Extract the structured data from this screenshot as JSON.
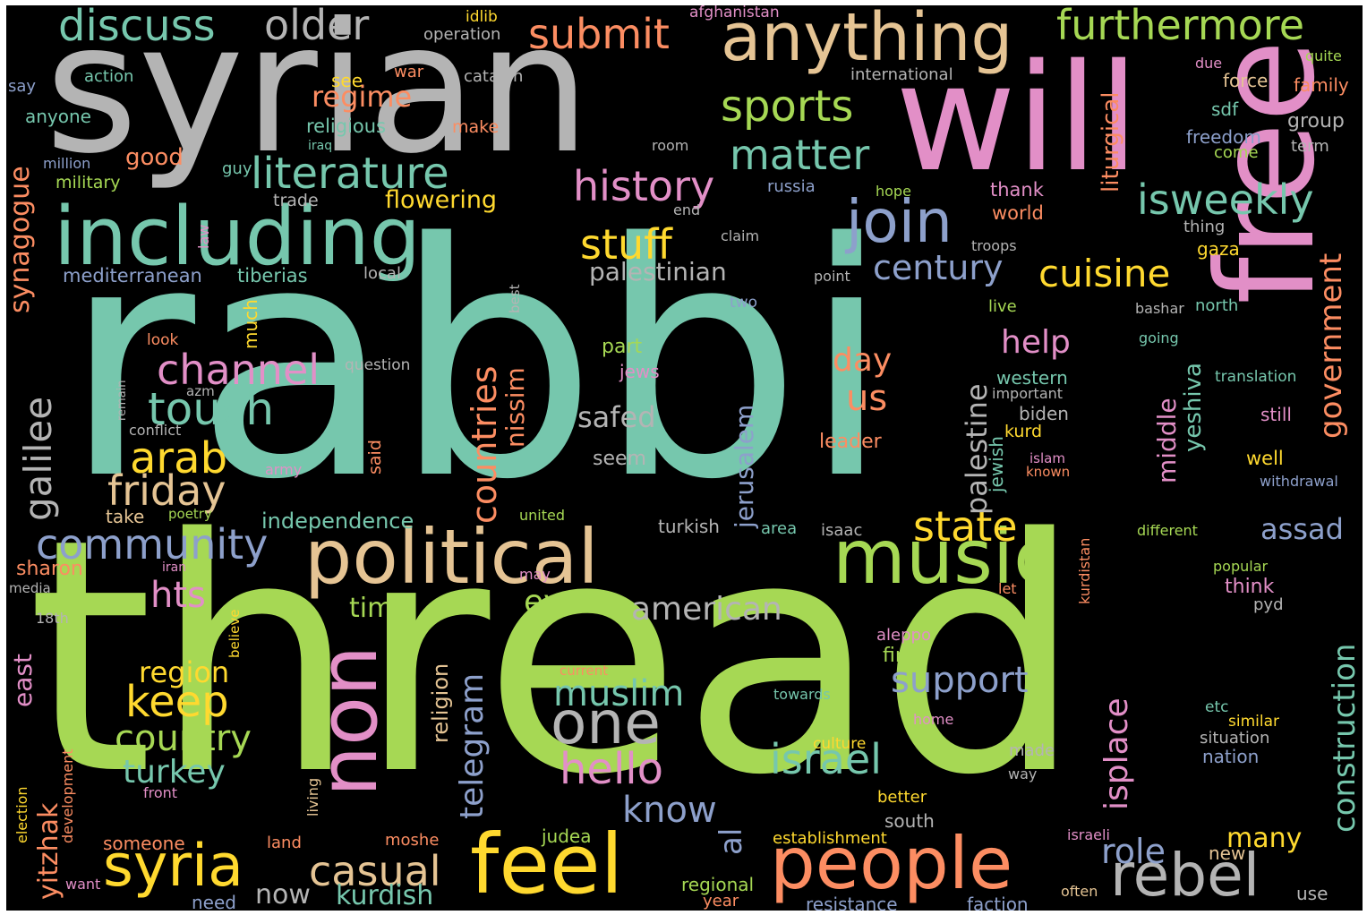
{
  "palette": {
    "teal": "#76c7ad",
    "green": "#a6d854",
    "pink": "#e28fc7",
    "gray": "#b4b4b4",
    "tan": "#e5c494",
    "orange": "#fc8d62",
    "blue": "#8da0cb",
    "yellow": "#ffd92f"
  },
  "words": [
    {
      "text": "rabbi",
      "color": "teal"
    },
    {
      "text": "thread",
      "color": "green"
    },
    {
      "text": "syrian",
      "color": "gray"
    },
    {
      "text": "will",
      "color": "pink"
    },
    {
      "text": "free",
      "color": "pink"
    },
    {
      "text": "including",
      "color": "teal"
    },
    {
      "text": "political",
      "color": "tan"
    },
    {
      "text": "music",
      "color": "green"
    },
    {
      "text": "anything",
      "color": "tan"
    },
    {
      "text": "people",
      "color": "orange"
    },
    {
      "text": "feel",
      "color": "yellow"
    },
    {
      "text": "non",
      "color": "pink"
    },
    {
      "text": "syria",
      "color": "yellow"
    },
    {
      "text": "rebel",
      "color": "gray"
    },
    {
      "text": "join",
      "color": "blue"
    },
    {
      "text": "literature",
      "color": "teal"
    },
    {
      "text": "history",
      "color": "pink"
    },
    {
      "text": "furthermore",
      "color": "green"
    },
    {
      "text": "discuss",
      "color": "teal"
    },
    {
      "text": "older",
      "color": "gray"
    },
    {
      "text": "submit",
      "color": "orange"
    },
    {
      "text": "sports",
      "color": "green"
    },
    {
      "text": "matter",
      "color": "teal"
    },
    {
      "text": "isweekly",
      "color": "teal"
    },
    {
      "text": "stuff",
      "color": "yellow"
    },
    {
      "text": "cuisine",
      "color": "yellow"
    },
    {
      "text": "century",
      "color": "blue"
    },
    {
      "text": "channel",
      "color": "pink"
    },
    {
      "text": "touch",
      "color": "teal"
    },
    {
      "text": "arab",
      "color": "yellow"
    },
    {
      "text": "friday",
      "color": "tan"
    },
    {
      "text": "community",
      "color": "blue"
    },
    {
      "text": "casual",
      "color": "tan"
    },
    {
      "text": "one",
      "color": "gray"
    },
    {
      "text": "hello",
      "color": "pink"
    },
    {
      "text": "state",
      "color": "yellow"
    },
    {
      "text": "keep",
      "color": "yellow"
    },
    {
      "text": "country",
      "color": "green"
    },
    {
      "text": "turkey",
      "color": "teal"
    },
    {
      "text": "israel",
      "color": "teal"
    },
    {
      "text": "muslim",
      "color": "teal"
    },
    {
      "text": "support",
      "color": "blue"
    },
    {
      "text": "american",
      "color": "gray"
    },
    {
      "text": "know",
      "color": "blue"
    },
    {
      "text": "role",
      "color": "blue"
    },
    {
      "text": "many",
      "color": "yellow"
    },
    {
      "text": "assad",
      "color": "blue"
    },
    {
      "text": "help",
      "color": "pink"
    },
    {
      "text": "day",
      "color": "orange"
    },
    {
      "text": "us",
      "color": "orange"
    },
    {
      "text": "safed",
      "color": "gray"
    },
    {
      "text": "hts",
      "color": "pink"
    },
    {
      "text": "region",
      "color": "yellow"
    },
    {
      "text": "even",
      "color": "green"
    },
    {
      "text": "time",
      "color": "green"
    },
    {
      "text": "now",
      "color": "gray"
    },
    {
      "text": "kurdish",
      "color": "teal"
    },
    {
      "text": "palestinian",
      "color": "gray"
    },
    {
      "text": "regime",
      "color": "orange"
    },
    {
      "text": "good",
      "color": "orange"
    },
    {
      "text": "flowering",
      "color": "yellow"
    },
    {
      "text": "independence",
      "color": "teal"
    },
    {
      "text": "sharon",
      "color": "orange"
    },
    {
      "text": "mediterranean",
      "color": "blue"
    },
    {
      "text": "tiberias",
      "color": "teal"
    },
    {
      "text": "military",
      "color": "green"
    },
    {
      "text": "million",
      "color": "blue"
    },
    {
      "text": "religious",
      "color": "teal"
    },
    {
      "text": "anyone",
      "color": "teal"
    },
    {
      "text": "action",
      "color": "teal"
    },
    {
      "text": "say",
      "color": "blue"
    },
    {
      "text": "see",
      "color": "yellow"
    },
    {
      "text": "war",
      "color": "orange"
    },
    {
      "text": "make",
      "color": "orange"
    },
    {
      "text": "catalan",
      "color": "gray"
    },
    {
      "text": "international",
      "color": "gray"
    },
    {
      "text": "operation",
      "color": "gray"
    },
    {
      "text": "idlib",
      "color": "yellow"
    },
    {
      "text": "afghanistan",
      "color": "pink"
    },
    {
      "text": "iraq",
      "color": "teal"
    },
    {
      "text": "guy",
      "color": "teal"
    },
    {
      "text": "trade",
      "color": "gray"
    },
    {
      "text": "room",
      "color": "gray"
    },
    {
      "text": "russia",
      "color": "blue"
    },
    {
      "text": "thank",
      "color": "pink"
    },
    {
      "text": "world",
      "color": "orange"
    },
    {
      "text": "hope",
      "color": "green"
    },
    {
      "text": "end",
      "color": "gray"
    },
    {
      "text": "claim",
      "color": "gray"
    },
    {
      "text": "troops",
      "color": "gray"
    },
    {
      "text": "gaza",
      "color": "yellow"
    },
    {
      "text": "thing",
      "color": "gray"
    },
    {
      "text": "sdf",
      "color": "teal"
    },
    {
      "text": "freedom",
      "color": "blue"
    },
    {
      "text": "come",
      "color": "green"
    },
    {
      "text": "force",
      "color": "tan"
    },
    {
      "text": "due",
      "color": "pink"
    },
    {
      "text": "quite",
      "color": "green"
    },
    {
      "text": "family",
      "color": "orange"
    },
    {
      "text": "group",
      "color": "gray"
    },
    {
      "text": "term",
      "color": "gray"
    },
    {
      "text": "local",
      "color": "gray"
    },
    {
      "text": "point",
      "color": "gray"
    },
    {
      "text": "two",
      "color": "blue"
    },
    {
      "text": "live",
      "color": "green"
    },
    {
      "text": "bashar",
      "color": "gray"
    },
    {
      "text": "north",
      "color": "teal"
    },
    {
      "text": "going",
      "color": "teal"
    },
    {
      "text": "translation",
      "color": "teal"
    },
    {
      "text": "western",
      "color": "teal"
    },
    {
      "text": "important",
      "color": "gray"
    },
    {
      "text": "biden",
      "color": "gray"
    },
    {
      "text": "kurd",
      "color": "yellow"
    },
    {
      "text": "still",
      "color": "pink"
    },
    {
      "text": "islam",
      "color": "pink"
    },
    {
      "text": "known",
      "color": "orange"
    },
    {
      "text": "well",
      "color": "yellow"
    },
    {
      "text": "withdrawal",
      "color": "blue"
    },
    {
      "text": "leader",
      "color": "orange"
    },
    {
      "text": "part",
      "color": "green"
    },
    {
      "text": "jews",
      "color": "pink"
    },
    {
      "text": "seem",
      "color": "gray"
    },
    {
      "text": "look",
      "color": "orange"
    },
    {
      "text": "question",
      "color": "gray"
    },
    {
      "text": "azm",
      "color": "gray"
    },
    {
      "text": "conflict",
      "color": "gray"
    },
    {
      "text": "army",
      "color": "pink"
    },
    {
      "text": "take",
      "color": "tan"
    },
    {
      "text": "poetry",
      "color": "green"
    },
    {
      "text": "iran",
      "color": "pink"
    },
    {
      "text": "media",
      "color": "gray"
    },
    {
      "text": "18th",
      "color": "gray"
    },
    {
      "text": "united",
      "color": "green"
    },
    {
      "text": "may",
      "color": "pink"
    },
    {
      "text": "turkish",
      "color": "gray"
    },
    {
      "text": "area",
      "color": "teal"
    },
    {
      "text": "isaac",
      "color": "gray"
    },
    {
      "text": "different",
      "color": "green"
    },
    {
      "text": "popular",
      "color": "green"
    },
    {
      "text": "think",
      "color": "pink"
    },
    {
      "text": "pyd",
      "color": "gray"
    },
    {
      "text": "let",
      "color": "orange"
    },
    {
      "text": "aleppo",
      "color": "pink"
    },
    {
      "text": "first",
      "color": "green"
    },
    {
      "text": "current",
      "color": "orange"
    },
    {
      "text": "towards",
      "color": "teal"
    },
    {
      "text": "home",
      "color": "pink"
    },
    {
      "text": "culture",
      "color": "yellow"
    },
    {
      "text": "etc",
      "color": "teal"
    },
    {
      "text": "similar",
      "color": "yellow"
    },
    {
      "text": "situation",
      "color": "gray"
    },
    {
      "text": "nation",
      "color": "blue"
    },
    {
      "text": "made",
      "color": "gray"
    },
    {
      "text": "way",
      "color": "gray"
    },
    {
      "text": "better",
      "color": "yellow"
    },
    {
      "text": "south",
      "color": "gray"
    },
    {
      "text": "establishment",
      "color": "yellow"
    },
    {
      "text": "israeli",
      "color": "pink"
    },
    {
      "text": "new",
      "color": "tan"
    },
    {
      "text": "use",
      "color": "gray"
    },
    {
      "text": "often",
      "color": "tan"
    },
    {
      "text": "faction",
      "color": "blue"
    },
    {
      "text": "resistance",
      "color": "blue"
    },
    {
      "text": "regional",
      "color": "green"
    },
    {
      "text": "year",
      "color": "orange"
    },
    {
      "text": "judea",
      "color": "green"
    },
    {
      "text": "moshe",
      "color": "orange"
    },
    {
      "text": "land",
      "color": "orange"
    },
    {
      "text": "someone",
      "color": "orange"
    },
    {
      "text": "front",
      "color": "pink"
    },
    {
      "text": "want",
      "color": "pink"
    },
    {
      "text": "need",
      "color": "blue"
    },
    {
      "text": "synagogue",
      "color": "orange"
    },
    {
      "text": "galilee",
      "color": "gray"
    },
    {
      "text": "yitzhak",
      "color": "orange"
    },
    {
      "text": "east",
      "color": "pink"
    },
    {
      "text": "election",
      "color": "yellow"
    },
    {
      "text": "development",
      "color": "orange"
    },
    {
      "text": "living",
      "color": "tan"
    },
    {
      "text": "believe",
      "color": "yellow"
    },
    {
      "text": "law",
      "color": "pink"
    },
    {
      "text": "much",
      "color": "yellow"
    },
    {
      "text": "remain",
      "color": "gray"
    },
    {
      "text": "said",
      "color": "orange"
    },
    {
      "text": "countries",
      "color": "orange"
    },
    {
      "text": "nissim",
      "color": "orange"
    },
    {
      "text": "jerusalem",
      "color": "blue"
    },
    {
      "text": "religion",
      "color": "tan"
    },
    {
      "text": "telegram",
      "color": "blue"
    },
    {
      "text": "al",
      "color": "blue"
    },
    {
      "text": "best",
      "color": "gray"
    },
    {
      "text": "palestine",
      "color": "gray"
    },
    {
      "text": "jewish",
      "color": "teal"
    },
    {
      "text": "middle",
      "color": "pink"
    },
    {
      "text": "yeshiva",
      "color": "teal"
    },
    {
      "text": "isplace",
      "color": "pink"
    },
    {
      "text": "liturgical",
      "color": "orange"
    },
    {
      "text": "government",
      "color": "orange"
    },
    {
      "text": "construction",
      "color": "teal"
    },
    {
      "text": "kurdistan",
      "color": "orange"
    }
  ]
}
